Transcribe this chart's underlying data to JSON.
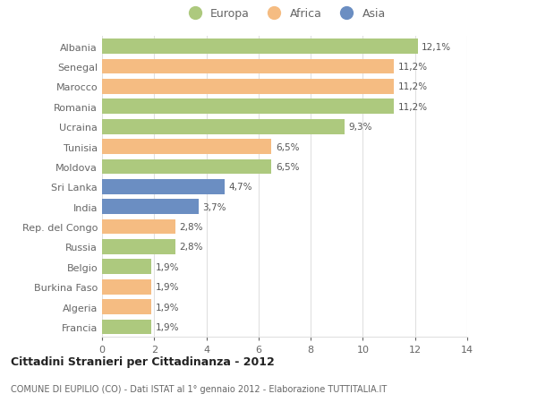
{
  "categories": [
    "Albania",
    "Senegal",
    "Marocco",
    "Romania",
    "Ucraina",
    "Tunisia",
    "Moldova",
    "Sri Lanka",
    "India",
    "Rep. del Congo",
    "Russia",
    "Belgio",
    "Burkina Faso",
    "Algeria",
    "Francia"
  ],
  "values": [
    12.1,
    11.2,
    11.2,
    11.2,
    9.3,
    6.5,
    6.5,
    4.7,
    3.7,
    2.8,
    2.8,
    1.9,
    1.9,
    1.9,
    1.9
  ],
  "labels": [
    "12,1%",
    "11,2%",
    "11,2%",
    "11,2%",
    "9,3%",
    "6,5%",
    "6,5%",
    "4,7%",
    "3,7%",
    "2,8%",
    "2,8%",
    "1,9%",
    "1,9%",
    "1,9%",
    "1,9%"
  ],
  "continents": [
    "Europa",
    "Africa",
    "Africa",
    "Europa",
    "Europa",
    "Africa",
    "Europa",
    "Asia",
    "Asia",
    "Africa",
    "Europa",
    "Europa",
    "Africa",
    "Africa",
    "Europa"
  ],
  "colors": {
    "Europa": "#adc97e",
    "Africa": "#f5bc82",
    "Asia": "#6b8ec2"
  },
  "xlim": [
    0,
    14
  ],
  "xticks": [
    0,
    2,
    4,
    6,
    8,
    10,
    12,
    14
  ],
  "title": "Cittadini Stranieri per Cittadinanza - 2012",
  "subtitle": "COMUNE DI EUPILIO (CO) - Dati ISTAT al 1° gennaio 2012 - Elaborazione TUTTITALIA.IT",
  "background_color": "#ffffff",
  "bar_height": 0.75,
  "grid_color": "#e0e0e0",
  "text_color": "#666666",
  "label_color": "#555555"
}
